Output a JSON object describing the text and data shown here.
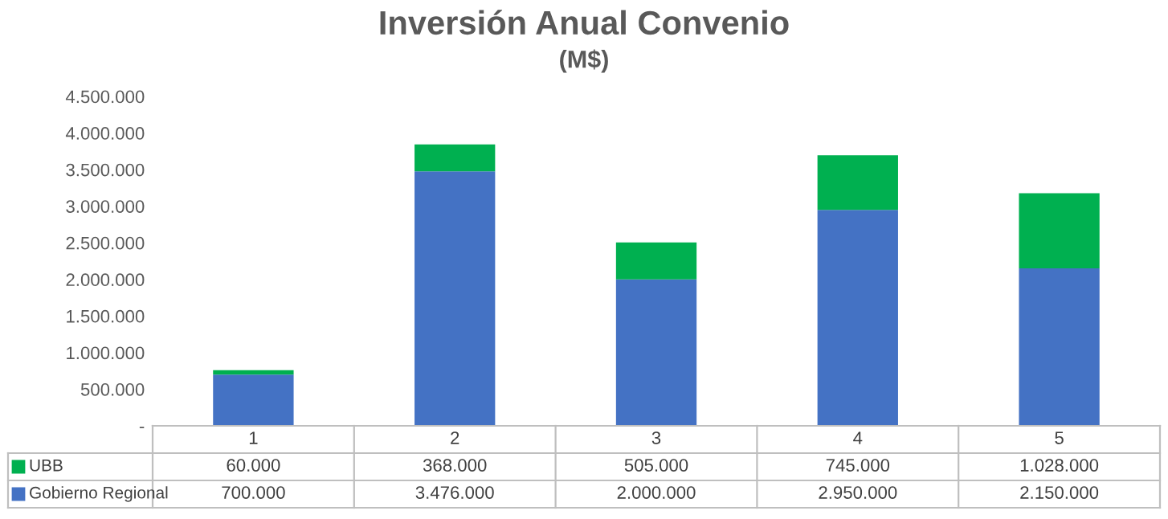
{
  "chart_data": {
    "type": "bar",
    "title": "Inversión Anual Convenio",
    "subtitle": "(M$)",
    "categories": [
      "1",
      "2",
      "3",
      "4",
      "5"
    ],
    "stacked": true,
    "series": [
      {
        "name": "Gobierno Regional",
        "color": "#4472c4",
        "values": [
          700000,
          3476000,
          2000000,
          2950000,
          2150000
        ],
        "value_labels": [
          "700.000",
          "3.476.000",
          "2.000.000",
          "2.950.000",
          "2.150.000"
        ]
      },
      {
        "name": "UBB",
        "color": "#00b050",
        "values": [
          60000,
          368000,
          505000,
          745000,
          1028000
        ],
        "value_labels": [
          "60.000",
          "368.000",
          "505.000",
          "745.000",
          "1.028.000"
        ]
      }
    ],
    "ylim": [
      0,
      4500000
    ],
    "yticks": [
      {
        "value": 0,
        "label": "-"
      },
      {
        "value": 500000,
        "label": "500.000"
      },
      {
        "value": 1000000,
        "label": "1.000.000"
      },
      {
        "value": 1500000,
        "label": "1.500.000"
      },
      {
        "value": 2000000,
        "label": "2.000.000"
      },
      {
        "value": 2500000,
        "label": "2.500.000"
      },
      {
        "value": 3000000,
        "label": "3.000.000"
      },
      {
        "value": 3500000,
        "label": "3.500.000"
      },
      {
        "value": 4000000,
        "label": "4.000.000"
      },
      {
        "value": 4500000,
        "label": "4.500.000"
      }
    ],
    "grid": false,
    "legend": "bottom"
  }
}
